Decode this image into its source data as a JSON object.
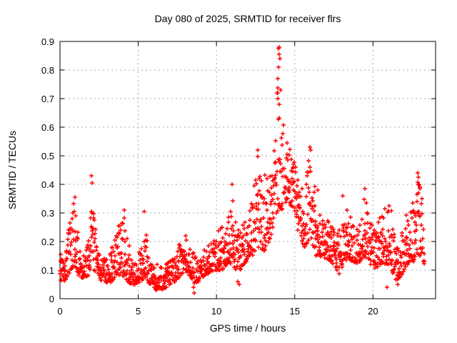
{
  "chart_data": {
    "type": "scatter",
    "title": "Day 080 of 2025, SRMTID for receiver flrs",
    "xlabel": "GPS time / hours",
    "ylabel": "SRMTID / TECUs",
    "xlim": [
      0,
      24
    ],
    "ylim": [
      0,
      0.9
    ],
    "xticks": [
      {
        "v": 0,
        "label": "0"
      },
      {
        "v": 5,
        "label": "5"
      },
      {
        "v": 10,
        "label": "10"
      },
      {
        "v": 15,
        "label": "15"
      },
      {
        "v": 20,
        "label": "20"
      }
    ],
    "yticks": [
      {
        "v": 0.0,
        "label": "0"
      },
      {
        "v": 0.1,
        "label": "0.1"
      },
      {
        "v": 0.2,
        "label": "0.2"
      },
      {
        "v": 0.3,
        "label": "0.3"
      },
      {
        "v": 0.4,
        "label": "0.4"
      },
      {
        "v": 0.5,
        "label": "0.5"
      },
      {
        "v": 0.6,
        "label": "0.6"
      },
      {
        "v": 0.7,
        "label": "0.7"
      },
      {
        "v": 0.8,
        "label": "0.8"
      },
      {
        "v": 0.9,
        "label": "0.9"
      }
    ],
    "grid": true,
    "legend": "none",
    "marker": "plus",
    "marker_color": "#ff0000",
    "grid_color": "#ababab",
    "border_color": "#000000",
    "data_start_hour": 0.0,
    "data_end_hour": 23.3,
    "sample_step_hours": 0.03,
    "points_per_step": 2,
    "skew_exponent": 1.7,
    "seed": 2025080,
    "envelope_hour_lo_hi": [
      [
        0.0,
        0.05,
        0.16
      ],
      [
        0.3,
        0.06,
        0.15
      ],
      [
        0.5,
        0.08,
        0.25
      ],
      [
        0.7,
        0.1,
        0.3
      ],
      [
        0.9,
        0.12,
        0.36
      ],
      [
        1.0,
        0.1,
        0.33
      ],
      [
        1.2,
        0.08,
        0.2
      ],
      [
        1.5,
        0.07,
        0.16
      ],
      [
        1.8,
        0.08,
        0.2
      ],
      [
        2.0,
        0.1,
        0.33
      ],
      [
        2.2,
        0.1,
        0.3
      ],
      [
        2.4,
        0.08,
        0.18
      ],
      [
        2.7,
        0.06,
        0.15
      ],
      [
        3.0,
        0.05,
        0.14
      ],
      [
        3.3,
        0.06,
        0.18
      ],
      [
        3.6,
        0.08,
        0.24
      ],
      [
        3.9,
        0.08,
        0.28
      ],
      [
        4.1,
        0.08,
        0.31
      ],
      [
        4.3,
        0.06,
        0.22
      ],
      [
        4.6,
        0.05,
        0.13
      ],
      [
        4.9,
        0.05,
        0.12
      ],
      [
        5.2,
        0.06,
        0.2
      ],
      [
        5.4,
        0.08,
        0.3
      ],
      [
        5.6,
        0.06,
        0.18
      ],
      [
        5.9,
        0.04,
        0.12
      ],
      [
        6.2,
        0.03,
        0.12
      ],
      [
        6.5,
        0.03,
        0.11
      ],
      [
        6.8,
        0.04,
        0.12
      ],
      [
        7.1,
        0.05,
        0.14
      ],
      [
        7.4,
        0.06,
        0.17
      ],
      [
        7.7,
        0.08,
        0.2
      ],
      [
        8.0,
        0.1,
        0.23
      ],
      [
        8.3,
        0.08,
        0.2
      ],
      [
        8.6,
        0.05,
        0.15
      ],
      [
        8.9,
        0.06,
        0.14
      ],
      [
        9.2,
        0.08,
        0.17
      ],
      [
        9.5,
        0.09,
        0.19
      ],
      [
        9.8,
        0.1,
        0.2
      ],
      [
        10.1,
        0.1,
        0.24
      ],
      [
        10.4,
        0.1,
        0.26
      ],
      [
        10.7,
        0.12,
        0.3
      ],
      [
        11.0,
        0.12,
        0.4
      ],
      [
        11.2,
        0.1,
        0.28
      ],
      [
        11.5,
        0.1,
        0.25
      ],
      [
        11.8,
        0.12,
        0.28
      ],
      [
        12.0,
        0.14,
        0.3
      ],
      [
        12.3,
        0.15,
        0.35
      ],
      [
        12.6,
        0.18,
        0.52
      ],
      [
        12.8,
        0.18,
        0.45
      ],
      [
        13.0,
        0.16,
        0.42
      ],
      [
        13.2,
        0.18,
        0.45
      ],
      [
        13.5,
        0.22,
        0.5
      ],
      [
        13.7,
        0.28,
        0.55
      ],
      [
        13.9,
        0.3,
        0.78
      ],
      [
        14.0,
        0.32,
        0.88
      ],
      [
        14.1,
        0.3,
        0.72
      ],
      [
        14.3,
        0.32,
        0.6
      ],
      [
        14.5,
        0.35,
        0.58
      ],
      [
        14.7,
        0.33,
        0.55
      ],
      [
        14.9,
        0.3,
        0.5
      ],
      [
        15.1,
        0.25,
        0.47
      ],
      [
        15.3,
        0.22,
        0.42
      ],
      [
        15.6,
        0.18,
        0.35
      ],
      [
        15.9,
        0.2,
        0.53
      ],
      [
        16.1,
        0.18,
        0.45
      ],
      [
        16.4,
        0.15,
        0.37
      ],
      [
        16.6,
        0.15,
        0.3
      ],
      [
        16.9,
        0.14,
        0.28
      ],
      [
        17.2,
        0.13,
        0.27
      ],
      [
        17.5,
        0.12,
        0.25
      ],
      [
        17.8,
        0.08,
        0.25
      ],
      [
        18.1,
        0.12,
        0.28
      ],
      [
        18.4,
        0.14,
        0.33
      ],
      [
        18.7,
        0.13,
        0.26
      ],
      [
        19.0,
        0.12,
        0.25
      ],
      [
        19.3,
        0.14,
        0.3
      ],
      [
        19.5,
        0.15,
        0.38
      ],
      [
        19.8,
        0.12,
        0.28
      ],
      [
        20.1,
        0.1,
        0.25
      ],
      [
        20.4,
        0.12,
        0.28
      ],
      [
        20.7,
        0.12,
        0.32
      ],
      [
        21.0,
        0.12,
        0.35
      ],
      [
        21.2,
        0.1,
        0.3
      ],
      [
        21.5,
        0.06,
        0.18
      ],
      [
        21.8,
        0.08,
        0.2
      ],
      [
        22.0,
        0.1,
        0.3
      ],
      [
        22.2,
        0.12,
        0.33
      ],
      [
        22.5,
        0.12,
        0.35
      ],
      [
        22.8,
        0.15,
        0.44
      ],
      [
        23.0,
        0.15,
        0.4
      ],
      [
        23.3,
        0.12,
        0.3
      ]
    ],
    "notable_points": [
      [
        0.95,
        0.355
      ],
      [
        2.0,
        0.43
      ],
      [
        2.05,
        0.405
      ],
      [
        4.1,
        0.31
      ],
      [
        5.4,
        0.305
      ],
      [
        8.55,
        0.04
      ],
      [
        8.6,
        0.02
      ],
      [
        11.0,
        0.4
      ],
      [
        11.35,
        0.06
      ],
      [
        11.45,
        0.05
      ],
      [
        12.62,
        0.52
      ],
      [
        13.9,
        0.77
      ],
      [
        13.93,
        0.7
      ],
      [
        13.95,
        0.81
      ],
      [
        13.98,
        0.875
      ],
      [
        14.0,
        0.88
      ],
      [
        14.0,
        0.68
      ],
      [
        14.02,
        0.855
      ],
      [
        14.05,
        0.84
      ],
      [
        14.08,
        0.73
      ],
      [
        15.95,
        0.53
      ],
      [
        16.0,
        0.52
      ],
      [
        16.45,
        0.38
      ],
      [
        18.05,
        0.36
      ],
      [
        19.5,
        0.385
      ],
      [
        20.9,
        0.04
      ],
      [
        21.6,
        0.05
      ],
      [
        22.85,
        0.44
      ],
      [
        22.9,
        0.425
      ]
    ]
  }
}
